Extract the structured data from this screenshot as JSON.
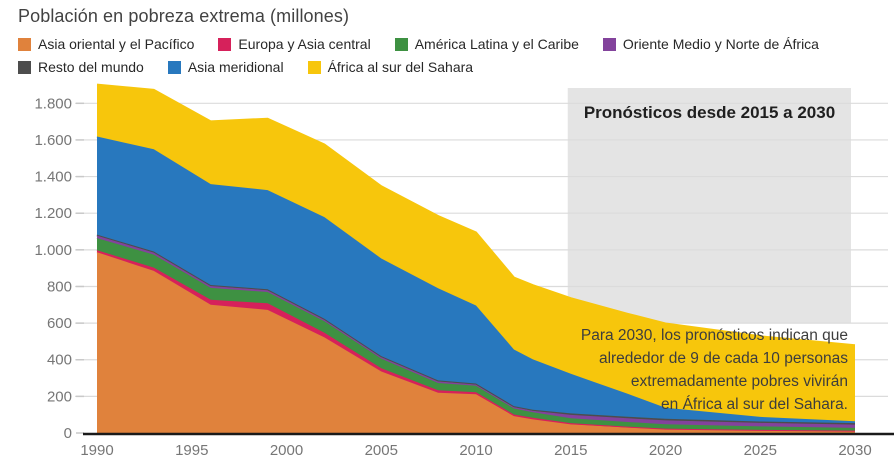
{
  "chart_data": {
    "type": "area",
    "stacked": true,
    "title": "Población en pobreza extrema (millones)",
    "xlabel": "",
    "ylabel": "",
    "xlim": [
      1990,
      2030
    ],
    "ylim": [
      0,
      1900
    ],
    "grid": "horizontal",
    "x": [
      1990,
      1993,
      1996,
      1999,
      2002,
      2005,
      2008,
      2010,
      2012,
      2013,
      2015,
      2018,
      2020,
      2025,
      2030
    ],
    "series": [
      {
        "name": "Asia oriental y el Pacífico",
        "color": "#E0823C",
        "values": [
          987,
          885,
          700,
          672,
          522,
          336,
          220,
          212,
          92,
          74,
          47,
          30,
          20,
          14,
          10
        ]
      },
      {
        "name": "Europa y Asia central",
        "color": "#D6215B",
        "values": [
          11,
          18,
          28,
          36,
          25,
          18,
          13,
          10,
          9,
          9,
          7,
          5,
          4,
          3,
          3
        ]
      },
      {
        "name": "América Latina y el Caribe",
        "color": "#3E9142",
        "values": [
          66,
          71,
          64,
          62,
          63,
          52,
          40,
          36,
          33,
          30,
          26,
          25,
          24,
          19,
          15
        ]
      },
      {
        "name": "Oriente Medio y Norte de África",
        "color": "#83439C",
        "values": [
          14,
          12,
          11,
          10,
          9,
          9,
          9,
          7,
          8,
          9,
          19,
          20,
          21,
          19,
          18
        ]
      },
      {
        "name": "Resto del mundo",
        "color": "#4D4D4D",
        "values": [
          5,
          5,
          5,
          5,
          5,
          5,
          5,
          5,
          5,
          5,
          8,
          9,
          9,
          8,
          8
        ]
      },
      {
        "name": "Asia meridional",
        "color": "#2878BE",
        "values": [
          536,
          558,
          551,
          541,
          555,
          533,
          503,
          426,
          309,
          275,
          216,
          125,
          60,
          25,
          10
        ]
      },
      {
        "name": "África al sur del Sahara",
        "color": "#F7C60C",
        "values": [
          283,
          324,
          342,
          390,
          396,
          394,
          395,
          399,
          393,
          405,
          413,
          437,
          460,
          440,
          415
        ]
      }
    ],
    "legend": {
      "position": "top",
      "rows": [
        [
          {
            "label": "Asia oriental y el Pacífico",
            "color": "#E0823C"
          },
          {
            "label": "Europa y Asia central",
            "color": "#D6215B"
          },
          {
            "label": "América Latina y el Caribe",
            "color": "#3E9142"
          },
          {
            "label": "Oriente Medio y Norte de África",
            "color": "#83439C"
          }
        ],
        [
          {
            "label": "Resto del mundo",
            "color": "#4D4D4D"
          },
          {
            "label": "Asia meridional",
            "color": "#2878BE"
          },
          {
            "label": "África al sur del Sahara",
            "color": "#F7C60C"
          }
        ]
      ]
    },
    "xticks": {
      "values": [
        1990,
        1995,
        2000,
        2005,
        2010,
        2015,
        2020,
        2025,
        2030
      ],
      "labels": [
        "1990",
        "1995",
        "2000",
        "2005",
        "2010",
        "2015",
        "2020",
        "2025",
        "2030"
      ]
    },
    "yticks": {
      "values": [
        0,
        200,
        400,
        600,
        800,
        1000,
        1200,
        1400,
        1600,
        1800
      ],
      "labels": [
        "0",
        "200",
        "400",
        "600",
        "800",
        "1.000",
        "1.200",
        "1.400",
        "1.600",
        "1.800"
      ]
    },
    "forecast_range": {
      "from": 2015,
      "to": 2030
    },
    "annotations": {
      "forecast_label": "Pronósticos desde 2015 a 2030",
      "note": "Para 2030, los pronósticos indican que\nalrededor de 9 de cada 10 personas\nextremadamente pobres vivirán\nen África al sur del Sahara."
    },
    "colors": {
      "forecast_box": "#E4E4E4",
      "gridline": "#DBDBDB",
      "axis_line": "#1A1A1A",
      "tick_label": "#767676",
      "tick_mark": "#C9C9C9",
      "title": "#424242",
      "annotation_text": "#3D3D3D"
    }
  }
}
